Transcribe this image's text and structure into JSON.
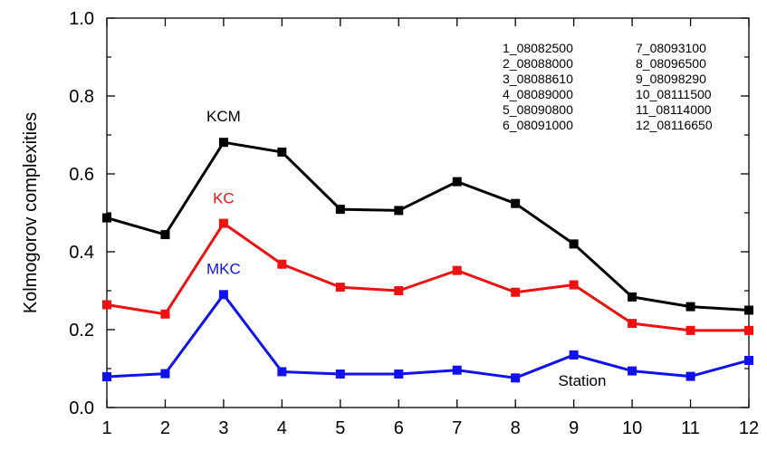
{
  "chart_data": {
    "type": "line",
    "title": "",
    "xlabel": "",
    "ylabel": "Kolmogorov complexities",
    "x": [
      1,
      2,
      3,
      4,
      5,
      6,
      7,
      8,
      9,
      10,
      11,
      12
    ],
    "xlim": [
      1,
      12
    ],
    "ylim": [
      0.0,
      1.0
    ],
    "xticks": [
      "1",
      "2",
      "3",
      "4",
      "5",
      "6",
      "7",
      "8",
      "9",
      "10",
      "11",
      "12"
    ],
    "yticks": [
      "0.0",
      "0.2",
      "0.4",
      "0.6",
      "0.8",
      "1.0"
    ],
    "ytick_values": [
      0.0,
      0.2,
      0.4,
      0.6,
      0.8,
      1.0
    ],
    "grid": false,
    "series": [
      {
        "name": "KCM",
        "color": "#000000",
        "values": [
          0.487,
          0.444,
          0.681,
          0.656,
          0.509,
          0.506,
          0.58,
          0.524,
          0.42,
          0.284,
          0.259,
          0.25
        ]
      },
      {
        "name": "KC",
        "color": "#ee1111",
        "values": [
          0.264,
          0.24,
          0.473,
          0.368,
          0.309,
          0.3,
          0.352,
          0.296,
          0.315,
          0.216,
          0.198,
          0.198
        ]
      },
      {
        "name": "MKC",
        "color": "#1111ee",
        "values": [
          0.079,
          0.087,
          0.29,
          0.092,
          0.086,
          0.086,
          0.096,
          0.076,
          0.135,
          0.094,
          0.08,
          0.121
        ]
      }
    ],
    "annotations": [
      "Station"
    ],
    "station_legend": [
      [
        "1_08082500",
        "7_08093100"
      ],
      [
        "2_08088000",
        "8_08096500"
      ],
      [
        "3_08088610",
        "9_08098290"
      ],
      [
        "4_08089000",
        "10_08111500"
      ],
      [
        "5_08090800",
        "11_08114000"
      ],
      [
        "6_08091000",
        "12_08116650"
      ]
    ]
  }
}
